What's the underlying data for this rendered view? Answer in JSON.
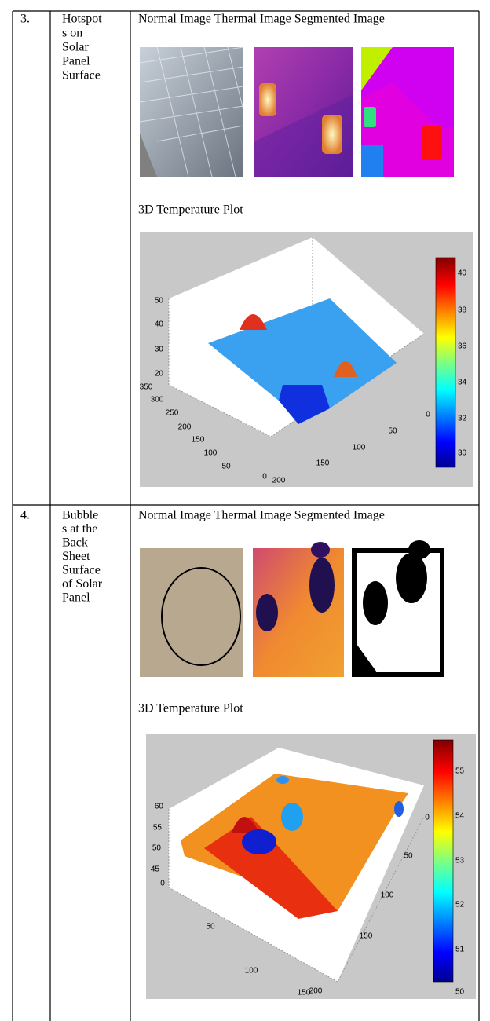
{
  "table": {
    "rows": [
      {
        "number": "3.",
        "label_lines": [
          "Hotspot",
          "s on",
          "Solar",
          "Panel",
          "Surface"
        ],
        "image_captions": "Normal Image Thermal Image Segmented Image",
        "plot_title": "3D Temperature Plot",
        "plot": {
          "z_ticks": [
            50,
            40,
            30,
            20
          ],
          "y_ticks": [
            350,
            300,
            250,
            200,
            150,
            100,
            50,
            0
          ],
          "x_ticks": [
            0,
            50,
            100,
            150,
            200
          ],
          "colorbar_ticks": [
            40,
            38,
            36,
            34,
            32,
            30
          ]
        }
      },
      {
        "number": "4.",
        "label_lines": [
          "Bubble",
          "s at the",
          "Back",
          "Sheet",
          "Surface",
          "of Solar",
          "Panel"
        ],
        "image_captions": "Normal Image Thermal Image Segmented Image",
        "plot_title": "3D Temperature Plot",
        "plot": {
          "z_ticks": [
            60,
            55,
            50,
            45
          ],
          "y_ticks": [
            0,
            50,
            100,
            150
          ],
          "x_ticks": [
            0,
            50,
            100,
            150,
            200
          ],
          "colorbar_ticks": [
            55,
            54,
            53,
            52,
            51,
            50
          ]
        }
      }
    ]
  }
}
